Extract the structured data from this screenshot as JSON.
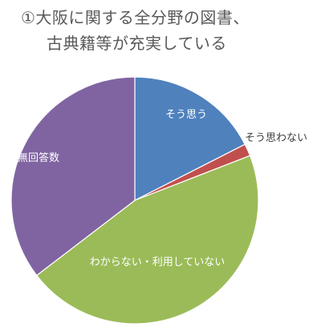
{
  "chart_data": {
    "type": "pie",
    "title_lines": [
      "①大阪に関する全分野の図書、",
      "古典籍等が充実している"
    ],
    "series": [
      {
        "label": "そう思う",
        "value": 17.5,
        "color": "#4F81BD",
        "label_color": "#ffffff"
      },
      {
        "label": "そう思わない",
        "value": 1.6,
        "color": "#C0504D",
        "label_color": "#404040"
      },
      {
        "label": "わからない・利用していない",
        "value": 45.5,
        "color": "#9BBB59",
        "label_color": "#ffffff"
      },
      {
        "label": "無回答数",
        "value": 35.4,
        "color": "#8064A2",
        "label_color": "#ffffff"
      }
    ],
    "start_angle_deg": 0,
    "direction": "clockwise",
    "slice_border_color": "#ffffff"
  }
}
